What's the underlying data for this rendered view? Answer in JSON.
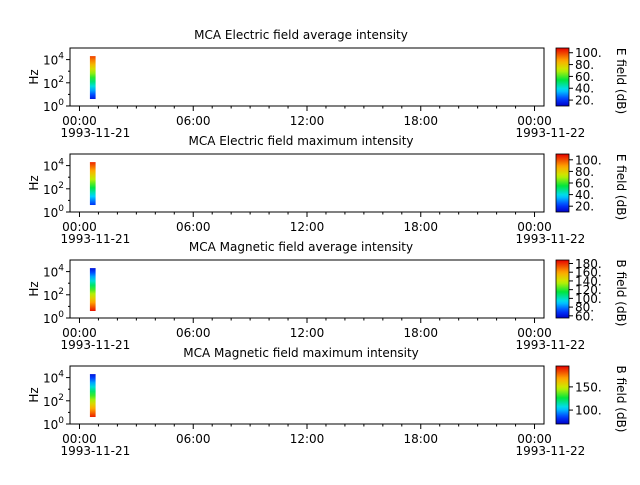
{
  "chart_data": [
    {
      "type": "heatmap",
      "title": "MCA  Electric field average intensity",
      "ylabel": "Hz",
      "colorbar_label": "E field (dB)",
      "colorbar_range": [
        10,
        108
      ],
      "colorbar_ticks": [
        "20.",
        "40.",
        "60.",
        "80.",
        "100."
      ],
      "colorbar_tick_values": [
        20,
        40,
        60,
        80,
        100
      ],
      "y_ticks": [
        {
          "base": "10",
          "exp": "0",
          "value": 1
        },
        {
          "base": "10",
          "exp": "2",
          "value": 100
        },
        {
          "base": "10",
          "exp": "4",
          "value": 10000
        }
      ],
      "ylim": [
        1,
        100000
      ],
      "yscale": "log",
      "x_ticks": [
        "00:00",
        "06:00",
        "12:00",
        "18:00",
        "00:00"
      ],
      "x_tick_hours": [
        0,
        6,
        12,
        18,
        24
      ],
      "xlim_hours": [
        -0.5,
        24.5
      ],
      "start_date": "1993-11-21",
      "end_date": "1993-11-22",
      "spectrum": {
        "start_hour": 0.55,
        "end_hour": 0.85,
        "freq_min": 4,
        "freq_max": 20000,
        "db_bottom": 15,
        "db_top": 100
      }
    },
    {
      "type": "heatmap",
      "title": "MCA  Electric field maximum intensity",
      "ylabel": "Hz",
      "colorbar_label": "E field (dB)",
      "colorbar_range": [
        10,
        110
      ],
      "colorbar_ticks": [
        "20.",
        "40.",
        "60.",
        "80.",
        "100."
      ],
      "colorbar_tick_values": [
        20,
        40,
        60,
        80,
        100
      ],
      "y_ticks": [
        {
          "base": "10",
          "exp": "0",
          "value": 1
        },
        {
          "base": "10",
          "exp": "2",
          "value": 100
        },
        {
          "base": "10",
          "exp": "4",
          "value": 10000
        }
      ],
      "ylim": [
        1,
        100000
      ],
      "yscale": "log",
      "x_ticks": [
        "00:00",
        "06:00",
        "12:00",
        "18:00",
        "00:00"
      ],
      "x_tick_hours": [
        0,
        6,
        12,
        18,
        24
      ],
      "xlim_hours": [
        -0.5,
        24.5
      ],
      "start_date": "1993-11-21",
      "end_date": "1993-11-22",
      "spectrum": {
        "start_hour": 0.55,
        "end_hour": 0.85,
        "freq_min": 4,
        "freq_max": 20000,
        "db_bottom": 20,
        "db_top": 105
      }
    },
    {
      "type": "heatmap",
      "title": "MCA  Magnetic field average intensity",
      "ylabel": "Hz",
      "colorbar_label": "B field (dB)",
      "colorbar_range": [
        55,
        188
      ],
      "colorbar_ticks": [
        "60.",
        "80.",
        "100.",
        "120.",
        "140.",
        "160.",
        "180."
      ],
      "colorbar_tick_values": [
        60,
        80,
        100,
        120,
        140,
        160,
        180
      ],
      "y_ticks": [
        {
          "base": "10",
          "exp": "0",
          "value": 1
        },
        {
          "base": "10",
          "exp": "2",
          "value": 100
        },
        {
          "base": "10",
          "exp": "4",
          "value": 10000
        }
      ],
      "ylim": [
        1,
        100000
      ],
      "yscale": "log",
      "x_ticks": [
        "00:00",
        "06:00",
        "12:00",
        "18:00",
        "00:00"
      ],
      "x_tick_hours": [
        0,
        6,
        12,
        18,
        24
      ],
      "xlim_hours": [
        -0.5,
        24.5
      ],
      "start_date": "1993-11-21",
      "end_date": "1993-11-22",
      "spectrum": {
        "start_hour": 0.55,
        "end_hour": 0.85,
        "freq_min": 4,
        "freq_max": 20000,
        "db_bottom": 185,
        "db_top": 60
      }
    },
    {
      "type": "heatmap",
      "title": "MCA  Magnetic field maximum intensity",
      "ylabel": "Hz",
      "colorbar_label": "B field (dB)",
      "colorbar_range": [
        70,
        195
      ],
      "colorbar_ticks": [
        "100.",
        "150."
      ],
      "colorbar_tick_values": [
        100,
        150
      ],
      "y_ticks": [
        {
          "base": "10",
          "exp": "0",
          "value": 1
        },
        {
          "base": "10",
          "exp": "2",
          "value": 100
        },
        {
          "base": "10",
          "exp": "4",
          "value": 10000
        }
      ],
      "ylim": [
        1,
        100000
      ],
      "yscale": "log",
      "x_ticks": [
        "00:00",
        "06:00",
        "12:00",
        "18:00",
        "00:00"
      ],
      "x_tick_hours": [
        0,
        6,
        12,
        18,
        24
      ],
      "xlim_hours": [
        -0.5,
        24.5
      ],
      "start_date": "1993-11-21",
      "end_date": "1993-11-22",
      "spectrum": {
        "start_hour": 0.55,
        "end_hour": 0.85,
        "freq_min": 4,
        "freq_max": 20000,
        "db_bottom": 190,
        "db_top": 75
      }
    }
  ]
}
